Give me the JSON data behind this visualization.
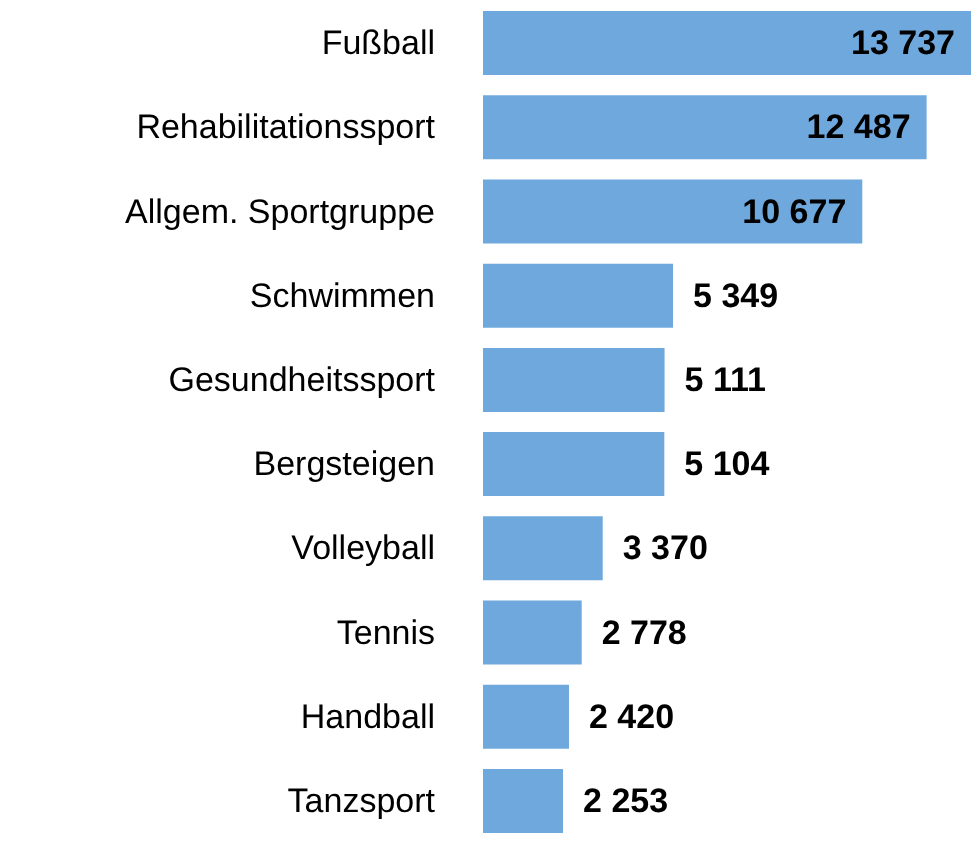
{
  "chart_data": {
    "type": "bar",
    "orientation": "horizontal",
    "categories": [
      "Fußball",
      "Rehabilitationssport",
      "Allgem. Sportgruppe",
      "Schwimmen",
      "Gesundheitssport",
      "Bergsteigen",
      "Volleyball",
      "Tennis",
      "Handball",
      "Tanzsport"
    ],
    "values": [
      13737,
      12487,
      10677,
      5349,
      5111,
      5104,
      3370,
      2778,
      2420,
      2253
    ],
    "value_labels": [
      "13 737",
      "12 487",
      "10 677",
      "5 349",
      "5 111",
      "5 104",
      "3 370",
      "2 778",
      "2 420",
      "2 253"
    ],
    "color": "#6fa8dc",
    "grid": false
  }
}
